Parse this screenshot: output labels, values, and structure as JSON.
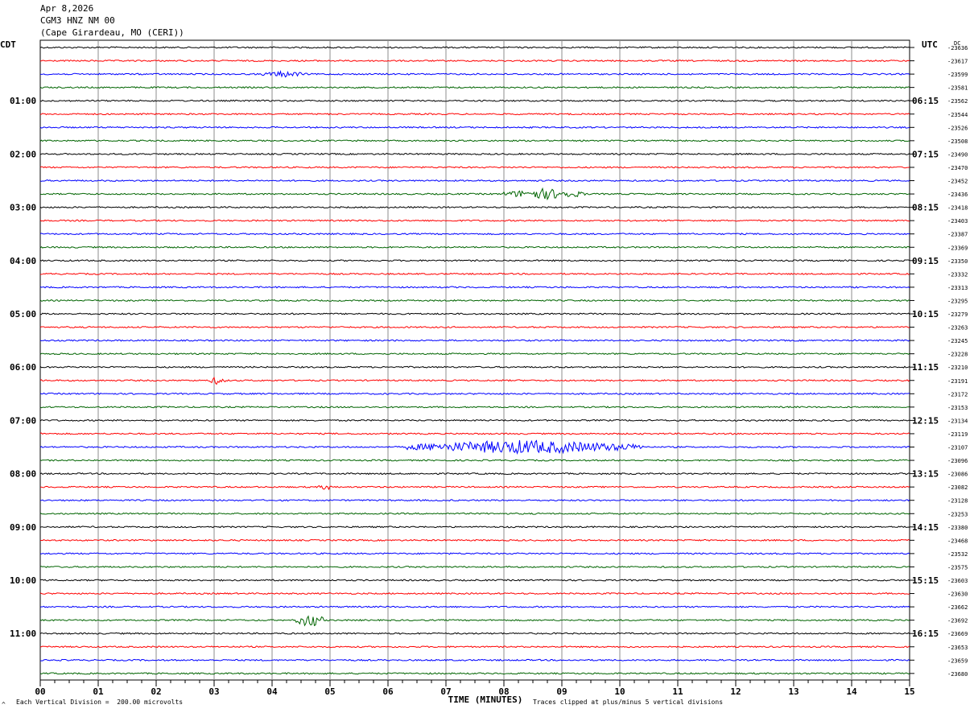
{
  "header": {
    "date": "Apr 8,2026",
    "station": "CGM3 HNZ NM 00",
    "location": "(Cape Girardeau, MO (CERI))"
  },
  "left_tz": "CDT",
  "right_tz": "UTC",
  "dc_label": "DC",
  "footer": {
    "scale_note": "Each Vertical Division =  200.00 microvolts",
    "clip_note": "Traces clipped at plus/minus 5 vertical divisions",
    "corner_mark": "^"
  },
  "colors": {
    "trace_cycle": [
      "#000000",
      "#ff0000",
      "#0000ff",
      "#006400"
    ],
    "grid": "#8c8c8c"
  },
  "chart_data": {
    "type": "line",
    "title": "",
    "xlabel": "TIME (MINUTES)",
    "ylabel": "",
    "xlim": [
      0,
      15
    ],
    "x_ticks": [
      "00",
      "01",
      "02",
      "03",
      "04",
      "05",
      "06",
      "07",
      "08",
      "09",
      "10",
      "11",
      "12",
      "13",
      "14",
      "15"
    ],
    "minor_ticks_per_minute": 4,
    "left_labels": [
      "01:00",
      "02:00",
      "03:00",
      "04:00",
      "05:00",
      "06:00",
      "07:00",
      "08:00",
      "09:00",
      "10:00",
      "11:00"
    ],
    "right_labels": [
      "06:15",
      "07:15",
      "08:15",
      "09:15",
      "10:15",
      "11:15",
      "12:15",
      "13:15",
      "14:15",
      "15:15",
      "16:15"
    ],
    "hour_first_row": 4,
    "rows_per_hour": 4,
    "dc_offsets": [
      "-23636",
      "-23617",
      "-23599",
      "-23581",
      "-23562",
      "-23544",
      "-23526",
      "-23508",
      "-23490",
      "-23470",
      "-23452",
      "-23436",
      "-23418",
      "-23403",
      "-23387",
      "-23369",
      "-23350",
      "-23332",
      "-23313",
      "-23295",
      "-23279",
      "-23263",
      "-23245",
      "-23228",
      "-23210",
      "-23191",
      "-23172",
      "-23153",
      "-23134",
      "-23119",
      "-23107",
      "-23096",
      "-23086",
      "-23082",
      "-23128",
      "-23253",
      "-23380",
      "-23468",
      "-23532",
      "-23575",
      "-23603",
      "-23630",
      "-23662",
      "-23692",
      "-23669",
      "-23653",
      "-23659",
      "-23680"
    ],
    "events": [
      {
        "row": 2,
        "start_min": 3.8,
        "end_min": 4.6,
        "amplitude": 4
      },
      {
        "row": 11,
        "start_min": 8.0,
        "end_min": 9.4,
        "amplitude": 7
      },
      {
        "row": 25,
        "start_min": 2.9,
        "end_min": 3.2,
        "amplitude": 5
      },
      {
        "row": 30,
        "start_min": 6.3,
        "end_min": 10.4,
        "amplitude": 9
      },
      {
        "row": 33,
        "start_min": 4.8,
        "end_min": 5.1,
        "amplitude": 4
      },
      {
        "row": 43,
        "start_min": 4.4,
        "end_min": 4.9,
        "amplitude": 9
      }
    ]
  }
}
